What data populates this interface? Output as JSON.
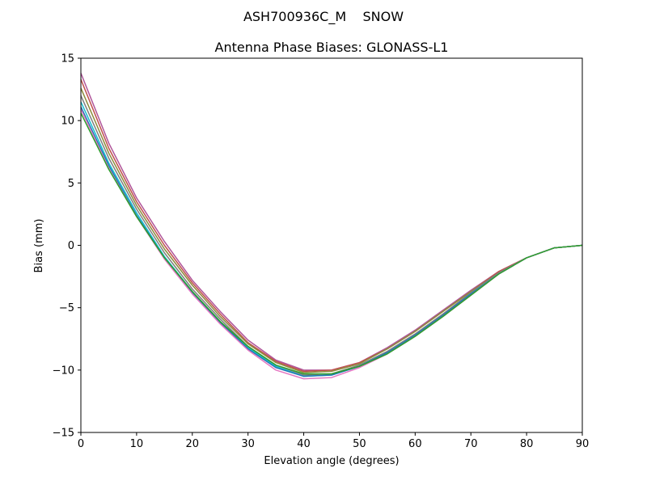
{
  "figure": {
    "suptitle": "ASH700936C_M    SNOW"
  },
  "chart_data": {
    "type": "line",
    "title": "Antenna Phase Biases: GLONASS-L1",
    "xlabel": "Elevation angle (degrees)",
    "ylabel": "Bias (mm)",
    "xlim": [
      0,
      90
    ],
    "ylim": [
      -15,
      15
    ],
    "xticks": [
      0,
      10,
      20,
      30,
      40,
      50,
      60,
      70,
      80,
      90
    ],
    "xtick_labels": [
      "0",
      "10",
      "20",
      "30",
      "40",
      "50",
      "60",
      "70",
      "80",
      "90"
    ],
    "yticks": [
      -15,
      -10,
      -5,
      0,
      5,
      10,
      15
    ],
    "ytick_labels": [
      "−15",
      "−10",
      "−5",
      "0",
      "5",
      "10",
      "15"
    ],
    "grid": false,
    "legend": "none",
    "x": [
      0,
      5,
      10,
      15,
      20,
      25,
      30,
      35,
      40,
      45,
      50,
      55,
      60,
      65,
      70,
      75,
      80,
      85,
      90
    ],
    "series": [
      {
        "color": "#b0559a",
        "values": [
          13.8,
          8.2,
          3.8,
          0.3,
          -2.8,
          -5.3,
          -7.6,
          -9.2,
          -10.0,
          -10.0,
          -9.4,
          -8.2,
          -6.8,
          -5.2,
          -3.6,
          -2.1,
          -1.0,
          -0.2,
          0.0
        ]
      },
      {
        "color": "#c0504d",
        "values": [
          13.3,
          7.8,
          3.5,
          0.0,
          -3.0,
          -5.5,
          -7.8,
          -9.3,
          -10.1,
          -10.0,
          -9.4,
          -8.3,
          -6.9,
          -5.3,
          -3.7,
          -2.1,
          -1.0,
          -0.2,
          0.0
        ]
      },
      {
        "color": "#8c8c3c",
        "values": [
          12.6,
          7.4,
          3.2,
          -0.3,
          -3.2,
          -5.7,
          -7.9,
          -9.4,
          -10.2,
          -10.1,
          -9.5,
          -8.3,
          -6.9,
          -5.3,
          -3.7,
          -2.2,
          -1.0,
          -0.2,
          0.0
        ]
      },
      {
        "color": "#7f7f7f",
        "values": [
          12.0,
          7.0,
          2.9,
          -0.6,
          -3.5,
          -5.9,
          -8.1,
          -9.6,
          -10.4,
          -10.3,
          -9.6,
          -8.5,
          -7.1,
          -5.5,
          -3.8,
          -2.2,
          -1.0,
          -0.2,
          0.0
        ]
      },
      {
        "color": "#17becf",
        "values": [
          11.5,
          6.6,
          2.6,
          -0.9,
          -3.7,
          -6.1,
          -8.2,
          -9.7,
          -10.5,
          -10.4,
          -9.7,
          -8.6,
          -7.2,
          -5.6,
          -3.9,
          -2.3,
          -1.0,
          -0.2,
          0.0
        ]
      },
      {
        "color": "#1f77b4",
        "values": [
          11.1,
          6.4,
          2.4,
          -1.0,
          -3.8,
          -6.2,
          -8.3,
          -9.8,
          -10.5,
          -10.4,
          -9.7,
          -8.6,
          -7.2,
          -5.6,
          -3.9,
          -2.3,
          -1.0,
          -0.2,
          0.0
        ]
      },
      {
        "color": "#e377c2",
        "values": [
          10.9,
          6.2,
          2.3,
          -1.1,
          -3.9,
          -6.3,
          -8.4,
          -10.0,
          -10.7,
          -10.6,
          -9.8,
          -8.7,
          -7.3,
          -5.7,
          -4.0,
          -2.3,
          -1.0,
          -0.2,
          0.0
        ]
      },
      {
        "color": "#2ca02c",
        "values": [
          10.6,
          6.1,
          2.3,
          -1.0,
          -3.7,
          -6.1,
          -8.1,
          -9.6,
          -10.3,
          -10.3,
          -9.7,
          -8.7,
          -7.3,
          -5.7,
          -4.0,
          -2.3,
          -1.0,
          -0.2,
          0.0
        ]
      }
    ]
  }
}
